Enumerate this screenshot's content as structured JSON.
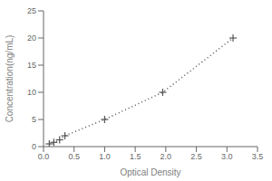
{
  "chart_data": {
    "type": "line",
    "x": [
      0.094,
      0.169,
      0.263,
      0.35,
      1.0,
      1.95,
      3.1
    ],
    "values": [
      0.5,
      0.78,
      1.25,
      2.0,
      5.0,
      10.0,
      20.0
    ],
    "xlabel": "Optical Density",
    "ylabel": "Concentration(ng/mL)",
    "xlim": [
      0,
      3.5
    ],
    "ylim": [
      0,
      25
    ],
    "xticks": [
      {
        "value": 0,
        "label": "0.0"
      },
      0.5,
      {
        "value": 1,
        "label": "1.0"
      },
      1.5,
      {
        "value": 2,
        "label": "2.0"
      },
      2.5,
      {
        "value": 3,
        "label": "3.0"
      },
      3.5
    ],
    "yticks": [
      0,
      5,
      10,
      15,
      20,
      25
    ],
    "color": "#555555",
    "marker": "plus",
    "line_style": "dotted",
    "grid": false
  }
}
